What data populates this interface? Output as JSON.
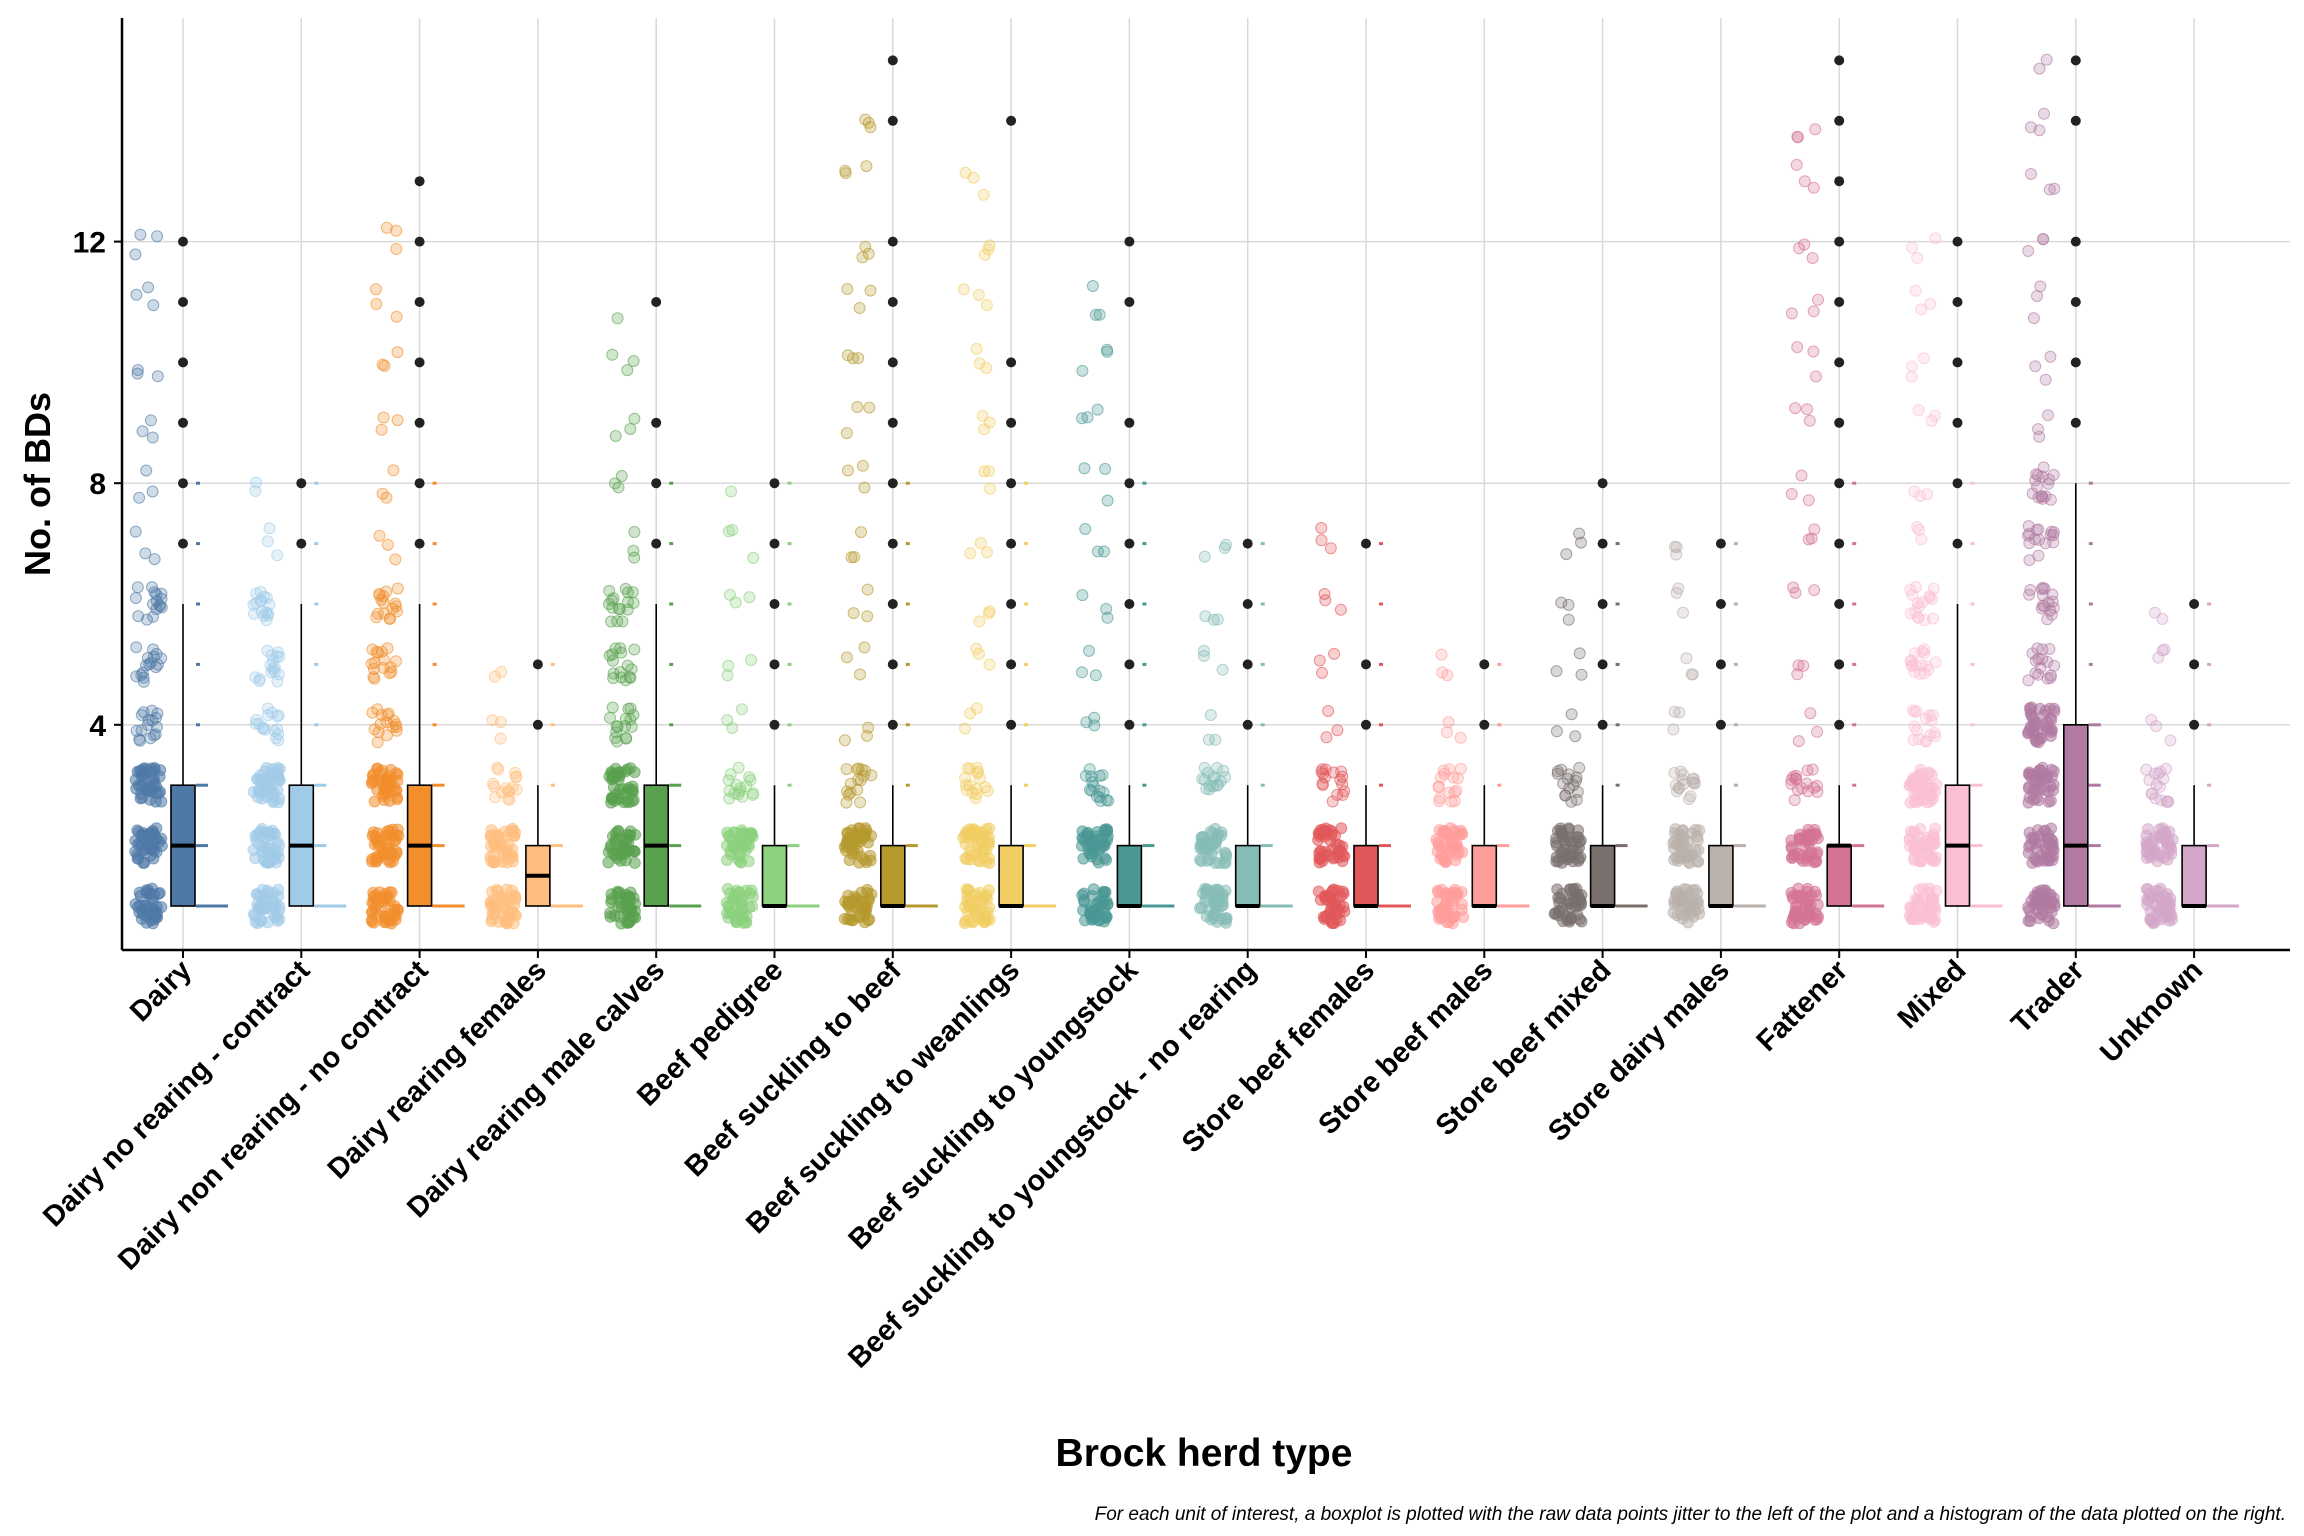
{
  "chart_data": {
    "type": "boxplot",
    "xlabel": "Brock herd type",
    "ylabel": "No. of BDs",
    "ylim": [
      0.5,
      15.5
    ],
    "y_ticks": [
      4,
      8,
      12
    ],
    "grid": true,
    "legend": "none",
    "caption": "For each unit of interest, a boxplot is plotted with the raw data points jitter to the left of the plot and a histogram of the data plotted on the right.",
    "categories": [
      "Dairy",
      "Dairy no rearing - contract",
      "Dairy non rearing - no contract",
      "Dairy rearing females",
      "Dairy rearing male calves",
      "Beef pedigree",
      "Beef suckling to beef",
      "Beef suckling to weanlings",
      "Beef suckling to youngstock",
      "Beef suckling to youngstock - no rearing",
      "Store beef females",
      "Store beef males",
      "Store beef mixed",
      "Store dairy males",
      "Fattener",
      "Mixed",
      "Trader",
      "Unknown"
    ],
    "colors": [
      "#4E79A7",
      "#A0CBE8",
      "#F28E2B",
      "#FFBE7D",
      "#59A14F",
      "#8CD17D",
      "#B6992D",
      "#F1CE63",
      "#499894",
      "#86BCB6",
      "#E15759",
      "#FF9D9A",
      "#79706E",
      "#BAB0AC",
      "#D37295",
      "#FABFD2",
      "#B07AA1",
      "#D4A6C8"
    ],
    "series": [
      {
        "name": "Dairy",
        "q1": 1,
        "median": 2,
        "q3": 3,
        "whisker_low": 1,
        "whisker_high": 6,
        "outliers": [
          7,
          8,
          9,
          10,
          11,
          12
        ],
        "jitter_max": 12.2
      },
      {
        "name": "Dairy no rearing - contract",
        "q1": 1,
        "median": 2,
        "q3": 3,
        "whisker_low": 1,
        "whisker_high": 6,
        "outliers": [
          7,
          8
        ],
        "jitter_max": 8.2
      },
      {
        "name": "Dairy non rearing - no contract",
        "q1": 1,
        "median": 2,
        "q3": 3,
        "whisker_low": 1,
        "whisker_high": 6,
        "outliers": [
          7,
          8,
          9,
          10,
          11,
          12,
          13
        ],
        "jitter_max": 12.8
      },
      {
        "name": "Dairy rearing females",
        "q1": 1,
        "median": 1.5,
        "q3": 2,
        "whisker_low": 1,
        "whisker_high": 3,
        "outliers": [
          4,
          5
        ],
        "jitter_max": 5.2
      },
      {
        "name": "Dairy rearing male calves",
        "q1": 1,
        "median": 2,
        "q3": 3,
        "whisker_low": 1,
        "whisker_high": 6,
        "outliers": [
          7,
          8,
          9,
          11
        ],
        "jitter_max": 11
      },
      {
        "name": "Beef pedigree",
        "q1": 1,
        "median": 1,
        "q3": 2,
        "whisker_low": 1,
        "whisker_high": 3,
        "outliers": [
          4,
          5,
          6,
          7,
          8
        ],
        "jitter_max": 8.1
      },
      {
        "name": "Beef suckling to beef",
        "q1": 1,
        "median": 1,
        "q3": 2,
        "whisker_low": 1,
        "whisker_high": 3,
        "outliers": [
          4,
          5,
          6,
          7,
          8,
          9,
          10,
          11,
          12,
          14,
          15
        ],
        "jitter_max": 14.9
      },
      {
        "name": "Beef suckling to weanlings",
        "q1": 1,
        "median": 1,
        "q3": 2,
        "whisker_low": 1,
        "whisker_high": 3,
        "outliers": [
          4,
          5,
          6,
          7,
          8,
          9,
          10,
          14
        ],
        "jitter_max": 13.7
      },
      {
        "name": "Beef suckling to youngstock",
        "q1": 1,
        "median": 1,
        "q3": 2,
        "whisker_low": 1,
        "whisker_high": 3,
        "outliers": [
          4,
          5,
          6,
          7,
          8,
          9,
          11,
          12
        ],
        "jitter_max": 11.7
      },
      {
        "name": "Beef suckling to youngstock - no rearing",
        "q1": 1,
        "median": 1,
        "q3": 2,
        "whisker_low": 1,
        "whisker_high": 3,
        "outliers": [
          4,
          5,
          6,
          7
        ],
        "jitter_max": 7.3
      },
      {
        "name": "Store beef females",
        "q1": 1,
        "median": 1,
        "q3": 2,
        "whisker_low": 1,
        "whisker_high": 3,
        "outliers": [
          4,
          5,
          7
        ],
        "jitter_max": 7.3
      },
      {
        "name": "Store beef males",
        "q1": 1,
        "median": 1,
        "q3": 2,
        "whisker_low": 1,
        "whisker_high": 3,
        "outliers": [
          4,
          5
        ],
        "jitter_max": 5.4
      },
      {
        "name": "Store beef mixed",
        "q1": 1,
        "median": 1,
        "q3": 2,
        "whisker_low": 1,
        "whisker_high": 3,
        "outliers": [
          4,
          5,
          6,
          7,
          8
        ],
        "jitter_max": 7.7
      },
      {
        "name": "Store dairy males",
        "q1": 1,
        "median": 1,
        "q3": 2,
        "whisker_low": 1,
        "whisker_high": 3,
        "outliers": [
          4,
          5,
          6,
          7
        ],
        "jitter_max": 7
      },
      {
        "name": "Fattener",
        "q1": 1,
        "median": 2,
        "q3": 2,
        "whisker_low": 1,
        "whisker_high": 3,
        "outliers": [
          4,
          5,
          6,
          7,
          8,
          9,
          10,
          11,
          12,
          13,
          14,
          15
        ],
        "jitter_max": 14.4
      },
      {
        "name": "Mixed",
        "q1": 1,
        "median": 2,
        "q3": 3,
        "whisker_low": 1,
        "whisker_high": 6,
        "outliers": [
          7,
          8,
          9,
          10,
          11,
          12
        ],
        "jitter_max": 12.3
      },
      {
        "name": "Trader",
        "q1": 1,
        "median": 2,
        "q3": 4,
        "whisker_low": 1,
        "whisker_high": 8,
        "outliers": [
          9,
          10,
          11,
          12,
          14,
          15
        ],
        "jitter_max": 15.2
      },
      {
        "name": "Unknown",
        "q1": 1,
        "median": 1,
        "q3": 2,
        "whisker_low": 1,
        "whisker_high": 3,
        "outliers": [
          4,
          5,
          6
        ],
        "jitter_max": 6.1
      }
    ]
  }
}
